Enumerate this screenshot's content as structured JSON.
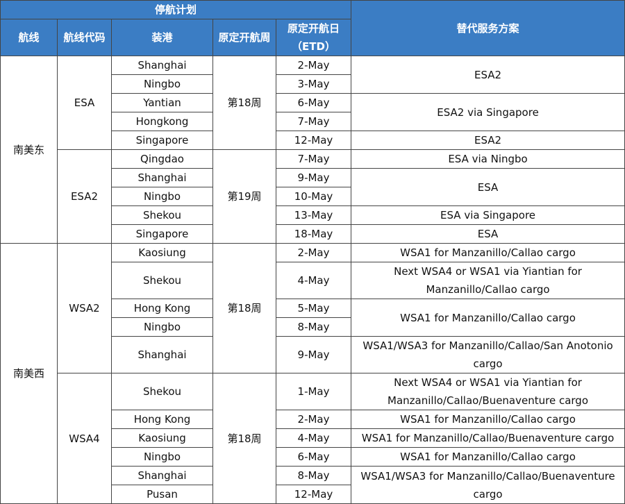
{
  "header": {
    "group": "停航计划",
    "columns": [
      "航线",
      "航线代码",
      "装港",
      "原定开航周"
    ],
    "etd": [
      "原定开航日",
      "（ETD）"
    ],
    "alternative": "替代服务方案"
  },
  "regions": [
    {
      "name": "南美东",
      "services": [
        {
          "code": "ESA",
          "week": "第18周",
          "ports": [
            {
              "port": "Shanghai",
              "etd": "2-May",
              "alternative": "ESA2"
            },
            {
              "port": "Ningbo",
              "etd": "3-May"
            },
            {
              "port": "Yantian",
              "etd": "6-May",
              "alternative": "ESA2 via Singapore"
            },
            {
              "port": "Hongkong",
              "etd": "7-May"
            },
            {
              "port": "Singapore",
              "etd": "12-May",
              "alternative": "ESA2"
            }
          ]
        },
        {
          "code": "ESA2",
          "week": "第19周",
          "ports": [
            {
              "port": "Qingdao",
              "etd": "7-May",
              "alternative": "ESA via Ningbo"
            },
            {
              "port": "Shanghai",
              "etd": "9-May",
              "alternative": "ESA"
            },
            {
              "port": "Ningbo",
              "etd": "10-May"
            },
            {
              "port": "Shekou",
              "etd": "13-May",
              "alternative": "ESA via Singapore"
            },
            {
              "port": "Singapore",
              "etd": "18-May",
              "alternative": "ESA"
            }
          ]
        }
      ]
    },
    {
      "name": "南美西",
      "services": [
        {
          "code": "WSA2",
          "week": "第18周",
          "ports": [
            {
              "port": "Kaosiung",
              "etd": "2-May",
              "alternative": "WSA1 for Manzanillo/Callao cargo"
            },
            {
              "port": "Shekou",
              "etd": "4-May",
              "alternative": "Next WSA4 or WSA1 via Yiantian for Manzanillo/Callao cargo"
            },
            {
              "port": "Hong Kong",
              "etd": "5-May",
              "alternative": "WSA1 for Manzanillo/Callao cargo"
            },
            {
              "port": "Ningbo",
              "etd": "8-May"
            },
            {
              "port": "Shanghai",
              "etd": "9-May",
              "alternative": "WSA1/WSA3 for Manzanillo/Callao/San Anotonio cargo"
            }
          ]
        },
        {
          "code": "WSA4",
          "week": "第18周",
          "ports": [
            {
              "port": "Shekou",
              "etd": "1-May",
              "alternative": "Next WSA4 or WSA1 via Yiantian for Manzanillo/Callao/Buenaventure cargo"
            },
            {
              "port": "Hong Kong",
              "etd": "2-May",
              "alternative": "WSA1 for Manzanillo/Callao cargo"
            },
            {
              "port": "Kaosiung",
              "etd": "4-May",
              "alternative": "WSA1 for Manzanillo/Callao/Buenaventure cargo"
            },
            {
              "port": "Ningbo",
              "etd": "6-May",
              "alternative": "WSA1 for Manzanillo/Callao cargo"
            },
            {
              "port": "Shanghai",
              "etd": "8-May",
              "alternative": "WSA1/WSA3 for Manzanillo/Callao/Buenaventure cargo"
            },
            {
              "port": "Pusan",
              "etd": "12-May"
            }
          ]
        }
      ]
    }
  ]
}
